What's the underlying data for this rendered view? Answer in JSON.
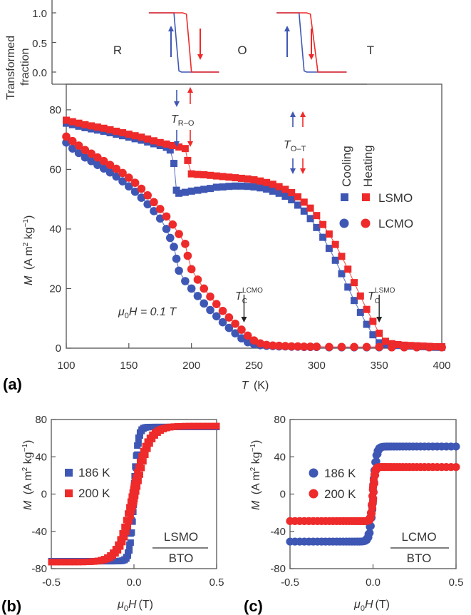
{
  "colors": {
    "blue": "#3f57b4",
    "red": "#ee2a2a",
    "axis": "#555555"
  },
  "chart_data": [
    {
      "type": "line",
      "panel": "(a) top",
      "ylabel_line1": "Transformed",
      "ylabel_line2": "fraction",
      "xlim": [
        100,
        400
      ],
      "ylim": [
        -0.1,
        1.1
      ],
      "yticks": [
        "1.0",
        "0.5",
        "0.0"
      ],
      "ytick_values": [
        1.0,
        0.5,
        0.0
      ],
      "phase_labels": [
        "R",
        "O",
        "T"
      ],
      "series": [
        {
          "name": "R-O cooling",
          "color": "blue",
          "x": [
            166,
            186,
            188,
            190,
            192,
            222
          ],
          "y": [
            1,
            1,
            0.5,
            0.02,
            0,
            0
          ]
        },
        {
          "name": "R-O heating",
          "color": "red",
          "x": [
            166,
            193,
            196,
            198,
            200,
            222
          ],
          "y": [
            1,
            1,
            0.98,
            0.5,
            0,
            0
          ]
        },
        {
          "name": "O-T cooling",
          "color": "blue",
          "x": [
            268,
            286,
            288,
            290,
            292,
            324
          ],
          "y": [
            1,
            1,
            0.5,
            0.02,
            0,
            0
          ]
        },
        {
          "name": "O-T heating",
          "color": "red",
          "x": [
            268,
            292,
            295,
            298,
            301,
            324
          ],
          "y": [
            1,
            1,
            0.98,
            0.5,
            0,
            0
          ]
        }
      ]
    },
    {
      "type": "scatter",
      "panel": "(a)",
      "xlabel_main": "T",
      "xlabel_unit": "(K)",
      "ylabel_sym": "M",
      "ylabel_unit_a": "(A m",
      "ylabel_unit_b": " kg",
      "ylabel_close": ")",
      "xlim": [
        100,
        400
      ],
      "ylim": [
        0,
        85
      ],
      "xticks": [
        100,
        150,
        200,
        250,
        300,
        350,
        400
      ],
      "yticks": [
        0,
        20,
        40,
        60,
        80
      ],
      "legend_cooling": "Cooling",
      "legend_heating": "Heating",
      "legend_lsmo": "LSMO",
      "legend_lcmo": "LCMO",
      "field_label_a": "μ",
      "field_label_sub": "0",
      "field_label_b": "H = 0.1 T",
      "tro_main": "T",
      "tro_sub": "R–O",
      "tot_main": "T",
      "tot_sub": "O–T",
      "tc_lcmo_main": "T",
      "tc_lcmo_sub": "C",
      "tc_lcmo_sup": "LCMO",
      "tc_lsmo_main": "T",
      "tc_lsmo_sup": "LSMO",
      "tc_lsmo_sub": "C",
      "tc_lcmo_value": 242,
      "tc_lsmo_value": 350,
      "series": [
        {
          "name": "LSMO cooling",
          "marker": "square",
          "color": "blue",
          "x": [
            100,
            105,
            110,
            115,
            120,
            125,
            130,
            135,
            140,
            145,
            150,
            155,
            160,
            165,
            170,
            175,
            180,
            183,
            186,
            188,
            190,
            195,
            200,
            205,
            210,
            215,
            220,
            225,
            230,
            235,
            240,
            245,
            250,
            255,
            260,
            265,
            270,
            275,
            280,
            285,
            290,
            295,
            300,
            305,
            310,
            315,
            320,
            325,
            330,
            335,
            340,
            345,
            350,
            355,
            360,
            365,
            370,
            375,
            380,
            385,
            390,
            395,
            400
          ],
          "y": [
            75.5,
            75,
            74.5,
            74,
            73.6,
            73.2,
            72.8,
            72.3,
            71.8,
            71.3,
            70.8,
            70.3,
            69.8,
            69.2,
            68.6,
            68,
            67.4,
            66.5,
            62,
            53,
            52,
            52.3,
            52.7,
            53,
            53.3,
            53.6,
            54,
            54.1,
            54.3,
            54.4,
            54.4,
            54.3,
            54.1,
            53.8,
            53.4,
            52.7,
            52,
            51,
            49.8,
            48,
            46,
            43.5,
            40.5,
            37.2,
            33.5,
            29.5,
            25,
            20.5,
            16,
            12,
            8,
            4.5,
            1.8,
            1.2,
            1,
            0.9,
            0.8,
            0.7,
            0.6,
            0.5,
            0.4,
            0.3,
            0.3
          ]
        },
        {
          "name": "LSMO heating",
          "marker": "square",
          "color": "red",
          "x": [
            100,
            105,
            110,
            115,
            120,
            125,
            130,
            135,
            140,
            145,
            150,
            155,
            160,
            165,
            170,
            175,
            180,
            185,
            190,
            195,
            197,
            200,
            205,
            210,
            215,
            220,
            225,
            230,
            235,
            240,
            245,
            250,
            255,
            260,
            265,
            270,
            275,
            280,
            285,
            290,
            295,
            300,
            305,
            310,
            315,
            320,
            325,
            330,
            335,
            340,
            345,
            350,
            355,
            360,
            365,
            370,
            375,
            380,
            385,
            390,
            395,
            400
          ],
          "y": [
            76.5,
            76,
            75.5,
            75,
            74.6,
            74.2,
            73.8,
            73.3,
            72.8,
            72.3,
            71.8,
            71.3,
            70.8,
            70.2,
            69.6,
            69,
            68.5,
            68,
            67.5,
            67,
            63,
            58.5,
            58.3,
            58.2,
            58,
            57.8,
            57.6,
            57.4,
            57.2,
            57,
            56.8,
            56.5,
            56.1,
            55.6,
            55,
            54.2,
            53.3,
            52.2,
            50.8,
            49,
            47,
            44.5,
            41.5,
            38.3,
            34.8,
            30.8,
            26.5,
            22,
            17.5,
            13,
            9,
            5,
            2.3,
            1.5,
            1.2,
            1,
            0.9,
            0.8,
            0.7,
            0.6,
            0.5,
            0.5
          ]
        },
        {
          "name": "LCMO cooling",
          "marker": "circle",
          "color": "blue",
          "x": [
            100,
            105,
            110,
            115,
            120,
            125,
            130,
            135,
            140,
            145,
            150,
            155,
            160,
            165,
            170,
            175,
            180,
            183,
            186,
            188,
            190,
            195,
            200,
            205,
            210,
            215,
            220,
            225,
            230,
            235,
            240,
            245,
            250,
            255,
            260,
            265,
            270,
            275,
            280,
            285,
            290,
            295,
            300,
            310,
            320,
            330,
            340,
            350,
            360,
            370,
            380,
            390,
            400
          ],
          "y": [
            69,
            67,
            65.5,
            64,
            62.8,
            61.5,
            60.3,
            59,
            57.6,
            56,
            54.3,
            52.5,
            50.5,
            48.3,
            46,
            43.5,
            40,
            37,
            34,
            30,
            26,
            22.5,
            20,
            17.5,
            15,
            12.8,
            10.7,
            8.7,
            6.8,
            5,
            3.3,
            2,
            1.3,
            1,
            0.8,
            0.7,
            0.6,
            0.6,
            0.5,
            0.5,
            0.4,
            0.4,
            0.4,
            0.3,
            0.3,
            0.3,
            0.3,
            0.3,
            0.3,
            0.3,
            0.3,
            0.3,
            0.3
          ]
        },
        {
          "name": "LCMO heating",
          "marker": "circle",
          "color": "red",
          "x": [
            100,
            105,
            110,
            115,
            120,
            125,
            130,
            135,
            140,
            145,
            150,
            155,
            160,
            165,
            170,
            175,
            180,
            185,
            190,
            195,
            197,
            200,
            205,
            210,
            215,
            220,
            225,
            230,
            235,
            240,
            245,
            250,
            255,
            260,
            265,
            270,
            275,
            280,
            285,
            290,
            295,
            300,
            310,
            320,
            330,
            340,
            350,
            360,
            370,
            380,
            390,
            400
          ],
          "y": [
            71,
            69.5,
            68,
            66.5,
            65.3,
            64,
            62.8,
            61.5,
            60.2,
            58.8,
            57.2,
            55.5,
            53.5,
            51.3,
            49,
            46.7,
            44.2,
            41.5,
            38.3,
            35,
            31,
            26.5,
            23,
            20,
            17.3,
            14.8,
            12.5,
            10.3,
            8.2,
            6.2,
            4.2,
            2.6,
            1.6,
            1.1,
            0.9,
            0.8,
            0.7,
            0.6,
            0.6,
            0.5,
            0.5,
            0.5,
            0.4,
            0.4,
            0.4,
            0.4,
            0.4,
            0.3,
            0.3,
            0.3,
            0.3,
            0.3
          ]
        }
      ]
    },
    {
      "type": "scatter",
      "panel": "(b)",
      "xlabel_sym": "μ",
      "xlabel_sub": "0",
      "xlabel_rest": "H",
      "xlabel_unit": "(T)",
      "ylabel_sym": "M",
      "ylabel_unit_a": "(A m",
      "ylabel_unit_b": " kg",
      "ylabel_close": ")",
      "xlim": [
        -0.5,
        0.5
      ],
      "ylim": [
        -80,
        80
      ],
      "xticks": [
        "-0.5",
        "0.0",
        "0.5"
      ],
      "xtick_values": [
        -0.5,
        0.0,
        0.5
      ],
      "yticks": [
        "80",
        "40",
        "0",
        "-40",
        "-80"
      ],
      "ytick_values": [
        80,
        40,
        0,
        -40,
        -80
      ],
      "legend": [
        "186 K",
        "200 K"
      ],
      "sample_top": "LSMO",
      "sample_bottom": "BTO",
      "series": [
        {
          "name": "186 K",
          "marker": "square",
          "color": "blue",
          "Ms": 72,
          "width": 0.025,
          "Hc": 0.003
        },
        {
          "name": "200 K",
          "marker": "square",
          "color": "red",
          "Ms": 73,
          "width": 0.09,
          "Hc": 0.01
        }
      ]
    },
    {
      "type": "scatter",
      "panel": "(c)",
      "xlabel_sym": "μ",
      "xlabel_sub": "0",
      "xlabel_rest": "H",
      "xlabel_unit": "(T)",
      "ylabel_sym": "M",
      "ylabel_unit_a": "(A m",
      "ylabel_unit_b": " kg",
      "ylabel_close": ")",
      "xlim": [
        -0.5,
        0.5
      ],
      "ylim": [
        -80,
        80
      ],
      "xticks": [
        "-0.5",
        "0.0",
        "0.5"
      ],
      "xtick_values": [
        -0.5,
        0.0,
        0.5
      ],
      "yticks": [
        "80",
        "40",
        "0",
        "-40",
        "-80"
      ],
      "ytick_values": [
        80,
        40,
        0,
        -40,
        -80
      ],
      "legend": [
        "186 K",
        "200 K"
      ],
      "sample_top": "LCMO",
      "sample_bottom": "BTO",
      "series": [
        {
          "name": "186 K",
          "marker": "circle",
          "color": "blue",
          "Ms": 51,
          "width": 0.02,
          "Hc": 0.003
        },
        {
          "name": "200 K",
          "marker": "circle",
          "color": "red",
          "Ms": 29,
          "width": 0.012,
          "Hc": 0.003
        }
      ]
    }
  ],
  "panel_labels": {
    "a": "(a)",
    "b": "(b)",
    "c": "(c)"
  }
}
